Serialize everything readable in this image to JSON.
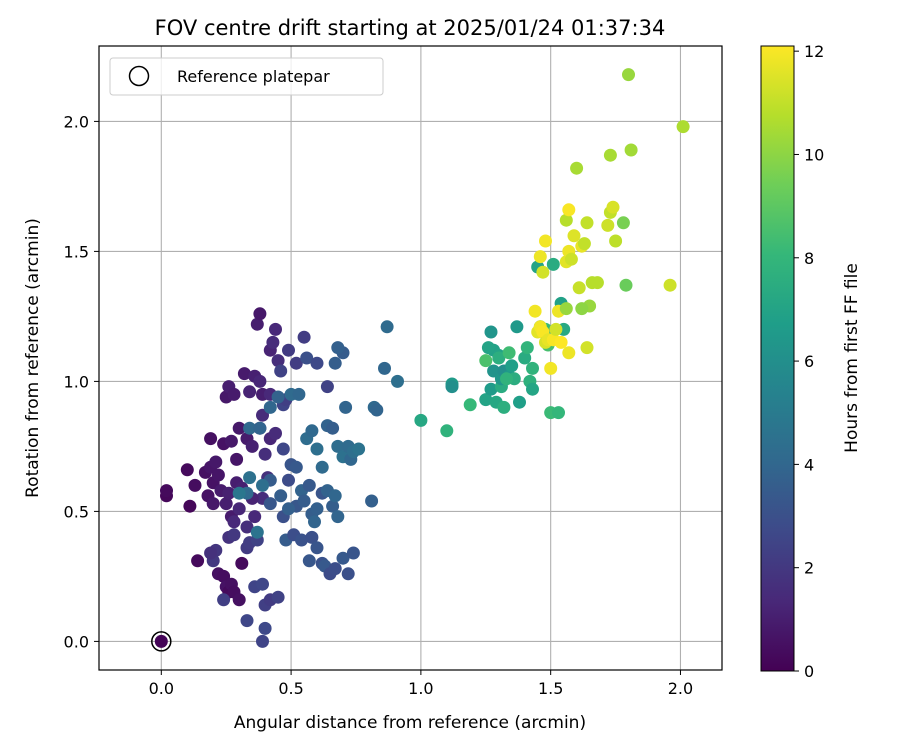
{
  "chart_data": {
    "type": "scatter",
    "title": "FOV centre drift starting at 2025/01/24 01:37:34",
    "xlabel": "Angular distance from reference (arcmin)",
    "ylabel": "Rotation from reference (arcmin)",
    "xlim": [
      -0.24,
      2.16
    ],
    "ylim": [
      -0.11,
      2.29
    ],
    "xticks": [
      0.0,
      0.5,
      1.0,
      1.5,
      2.0
    ],
    "xtick_labels": [
      "0.0",
      "0.5",
      "1.0",
      "1.5",
      "2.0"
    ],
    "yticks": [
      0.0,
      0.5,
      1.0,
      1.5,
      2.0
    ],
    "ytick_labels": [
      "0.0",
      "0.5",
      "1.0",
      "1.5",
      "2.0"
    ],
    "grid": true,
    "legend": {
      "position": "top-left",
      "entries": [
        "Reference platepar"
      ]
    },
    "reference_point": {
      "x": 0.0,
      "y": 0.0,
      "label": "Reference platepar"
    },
    "colorbar": {
      "label": "Hours from first FF file",
      "colormap": "viridis",
      "range": [
        0,
        12.1
      ],
      "ticks": [
        0,
        2,
        4,
        6,
        8,
        10,
        12
      ],
      "tick_labels": [
        "0",
        "2",
        "4",
        "6",
        "8",
        "10",
        "12"
      ]
    },
    "colors": {
      "viridis": [
        "#440154",
        "#482878",
        "#3e4989",
        "#31688e",
        "#26828e",
        "#1f9e89",
        "#35b779",
        "#6ece58",
        "#b5de2b",
        "#fde725"
      ],
      "grid": "#b0b0b0",
      "axes": "#000000"
    },
    "points": [
      [
        0.0,
        0.0,
        0.1
      ],
      [
        0.02,
        0.56,
        0.2
      ],
      [
        0.02,
        0.58,
        0.3
      ],
      [
        0.1,
        0.66,
        0.3
      ],
      [
        0.11,
        0.52,
        0.2
      ],
      [
        0.13,
        0.6,
        0.4
      ],
      [
        0.14,
        0.31,
        0.3
      ],
      [
        0.17,
        0.65,
        0.5
      ],
      [
        0.18,
        0.56,
        0.6
      ],
      [
        0.19,
        0.67,
        0.7
      ],
      [
        0.19,
        0.78,
        0.5
      ],
      [
        0.2,
        0.61,
        0.6
      ],
      [
        0.21,
        0.69,
        0.8
      ],
      [
        0.2,
        0.53,
        0.8
      ],
      [
        0.22,
        0.64,
        0.7
      ],
      [
        0.23,
        0.58,
        0.9
      ],
      [
        0.22,
        0.26,
        0.5
      ],
      [
        0.24,
        0.25,
        0.4
      ],
      [
        0.25,
        0.21,
        0.6
      ],
      [
        0.26,
        0.19,
        0.3
      ],
      [
        0.27,
        0.22,
        0.5
      ],
      [
        0.28,
        0.19,
        0.4
      ],
      [
        0.3,
        0.16,
        0.5
      ],
      [
        0.31,
        0.3,
        0.3
      ],
      [
        0.24,
        0.76,
        0.6
      ],
      [
        0.27,
        0.77,
        0.8
      ],
      [
        0.29,
        0.7,
        0.7
      ],
      [
        0.3,
        0.82,
        0.8
      ],
      [
        0.25,
        0.53,
        1.0
      ],
      [
        0.26,
        0.57,
        1.1
      ],
      [
        0.27,
        0.48,
        0.9
      ],
      [
        0.29,
        0.61,
        1.0
      ],
      [
        0.31,
        0.59,
        1.1
      ],
      [
        0.33,
        0.78,
        0.9
      ],
      [
        0.35,
        0.75,
        1.1
      ],
      [
        0.25,
        0.94,
        0.8
      ],
      [
        0.26,
        0.98,
        1.0
      ],
      [
        0.28,
        0.95,
        0.9
      ],
      [
        0.32,
        1.03,
        0.9
      ],
      [
        0.34,
        0.96,
        1.2
      ],
      [
        0.36,
        1.02,
        1.1
      ],
      [
        0.38,
        1.0,
        1.3
      ],
      [
        0.39,
        0.95,
        1.0
      ],
      [
        0.37,
        1.22,
        1.0
      ],
      [
        0.38,
        1.26,
        0.8
      ],
      [
        0.42,
        1.12,
        1.2
      ],
      [
        0.44,
        1.2,
        1.4
      ],
      [
        0.43,
        1.15,
        1.5
      ],
      [
        0.45,
        1.08,
        1.6
      ],
      [
        0.42,
        0.95,
        1.4
      ],
      [
        0.39,
        0.87,
        1.5
      ],
      [
        0.38,
        0.82,
        1.4
      ],
      [
        0.4,
        0.72,
        1.6
      ],
      [
        0.42,
        0.78,
        1.3
      ],
      [
        0.44,
        0.8,
        1.5
      ],
      [
        0.41,
        0.63,
        1.7
      ],
      [
        0.39,
        0.55,
        1.6
      ],
      [
        0.35,
        0.55,
        1.2
      ],
      [
        0.36,
        0.48,
        1.4
      ],
      [
        0.33,
        0.44,
        1.6
      ],
      [
        0.3,
        0.51,
        1.3
      ],
      [
        0.28,
        0.46,
        1.4
      ],
      [
        0.26,
        0.4,
        1.8
      ],
      [
        0.21,
        0.35,
        1.9
      ],
      [
        0.2,
        0.31,
        2.0
      ],
      [
        0.19,
        0.34,
        1.7
      ],
      [
        0.24,
        0.16,
        2.3
      ],
      [
        0.28,
        0.41,
        2.0
      ],
      [
        0.33,
        0.36,
        2.1
      ],
      [
        0.34,
        0.38,
        2.2
      ],
      [
        0.37,
        0.39,
        2.4
      ],
      [
        0.36,
        0.21,
        2.5
      ],
      [
        0.39,
        0.22,
        2.6
      ],
      [
        0.4,
        0.14,
        2.3
      ],
      [
        0.42,
        0.16,
        2.1
      ],
      [
        0.45,
        0.17,
        2.4
      ],
      [
        0.33,
        0.08,
        2.6
      ],
      [
        0.4,
        0.05,
        2.7
      ],
      [
        0.39,
        0.0,
        2.5
      ],
      [
        0.47,
        0.91,
        2.5
      ],
      [
        0.48,
        0.93,
        2.3
      ],
      [
        0.46,
        1.04,
        2.4
      ],
      [
        0.49,
        1.12,
        2.1
      ],
      [
        0.52,
        1.07,
        2.2
      ],
      [
        0.55,
        1.17,
        2.2
      ],
      [
        0.56,
        1.09,
        3.0
      ],
      [
        0.6,
        1.07,
        2.7
      ],
      [
        0.64,
        0.98,
        2.4
      ],
      [
        0.47,
        0.74,
        2.6
      ],
      [
        0.49,
        0.62,
        2.8
      ],
      [
        0.5,
        0.68,
        3.2
      ],
      [
        0.52,
        0.67,
        3.4
      ],
      [
        0.47,
        0.48,
        3.0
      ],
      [
        0.52,
        0.52,
        3.3
      ],
      [
        0.48,
        0.39,
        3.5
      ],
      [
        0.51,
        0.41,
        2.9
      ],
      [
        0.54,
        0.39,
        3.1
      ],
      [
        0.57,
        0.31,
        3.3
      ],
      [
        0.58,
        0.4,
        3.0
      ],
      [
        0.6,
        0.36,
        3.2
      ],
      [
        0.62,
        0.3,
        3.1
      ],
      [
        0.63,
        0.29,
        3.4
      ],
      [
        0.65,
        0.26,
        2.8
      ],
      [
        0.67,
        0.28,
        2.9
      ],
      [
        0.7,
        0.32,
        3.4
      ],
      [
        0.72,
        0.26,
        3.0
      ],
      [
        0.74,
        0.34,
        3.2
      ],
      [
        0.42,
        0.62,
        3.5
      ],
      [
        0.42,
        0.53,
        3.3
      ],
      [
        0.46,
        0.56,
        3.6
      ],
      [
        0.49,
        0.51,
        3.7
      ],
      [
        0.54,
        0.58,
        3.8
      ],
      [
        0.55,
        0.54,
        3.5
      ],
      [
        0.57,
        0.6,
        3.4
      ],
      [
        0.58,
        0.49,
        3.6
      ],
      [
        0.59,
        0.46,
        3.9
      ],
      [
        0.6,
        0.51,
        3.7
      ],
      [
        0.62,
        0.57,
        3.2
      ],
      [
        0.64,
        0.58,
        3.8
      ],
      [
        0.66,
        0.52,
        3.6
      ],
      [
        0.68,
        0.48,
        3.9
      ],
      [
        0.67,
        0.56,
        4.0
      ],
      [
        0.34,
        0.82,
        4.1
      ],
      [
        0.38,
        0.82,
        3.9
      ],
      [
        0.42,
        0.9,
        4.0
      ],
      [
        0.45,
        0.94,
        3.8
      ],
      [
        0.5,
        0.95,
        4.2
      ],
      [
        0.53,
        0.95,
        4.0
      ],
      [
        0.56,
        0.78,
        4.3
      ],
      [
        0.58,
        0.81,
        4.1
      ],
      [
        0.6,
        0.74,
        4.4
      ],
      [
        0.62,
        0.67,
        4.2
      ],
      [
        0.64,
        0.83,
        3.8
      ],
      [
        0.66,
        0.82,
        3.6
      ],
      [
        0.68,
        0.75,
        4.3
      ],
      [
        0.7,
        0.71,
        4.5
      ],
      [
        0.72,
        0.75,
        4.2
      ],
      [
        0.73,
        0.7,
        4.0
      ],
      [
        0.74,
        0.73,
        4.4
      ],
      [
        0.76,
        0.74,
        4.6
      ],
      [
        0.71,
        0.9,
        3.9
      ],
      [
        0.67,
        1.07,
        3.6
      ],
      [
        0.7,
        1.11,
        3.5
      ],
      [
        0.68,
        1.13,
        3.7
      ],
      [
        0.81,
        0.54,
        3.7
      ],
      [
        0.82,
        0.9,
        4.1
      ],
      [
        0.83,
        0.89,
        3.9
      ],
      [
        0.86,
        1.05,
        4.0
      ],
      [
        0.87,
        1.21,
        4.2
      ],
      [
        0.91,
        1.0,
        4.4
      ],
      [
        0.39,
        0.6,
        4.4
      ],
      [
        0.37,
        0.42,
        4.6
      ],
      [
        0.33,
        0.57,
        4.2
      ],
      [
        0.34,
        0.63,
        4.5
      ],
      [
        0.3,
        0.57,
        4.8
      ],
      [
        1.0,
        0.85,
        7.2
      ],
      [
        1.1,
        0.81,
        7.8
      ],
      [
        1.12,
        0.99,
        6.6
      ],
      [
        1.12,
        0.98,
        6.0
      ],
      [
        1.19,
        0.91,
        8.1
      ],
      [
        1.25,
        0.93,
        7.0
      ],
      [
        1.27,
        0.97,
        6.6
      ],
      [
        1.28,
        1.04,
        6.2
      ],
      [
        1.29,
        0.92,
        7.2
      ],
      [
        1.31,
        0.98,
        7.4
      ],
      [
        1.32,
        0.9,
        7.6
      ],
      [
        1.27,
        1.19,
        6.3
      ],
      [
        1.28,
        1.12,
        6.9
      ],
      [
        1.3,
        1.1,
        7.0
      ],
      [
        1.31,
        1.01,
        6.4
      ],
      [
        1.32,
        1.04,
        6.0
      ],
      [
        1.34,
        1.02,
        6.5
      ],
      [
        1.35,
        1.06,
        6.8
      ],
      [
        1.36,
        1.01,
        7.5
      ],
      [
        1.37,
        1.21,
        6.5
      ],
      [
        1.38,
        0.92,
        6.8
      ],
      [
        1.4,
        1.09,
        7.4
      ],
      [
        1.41,
        1.13,
        7.9
      ],
      [
        1.42,
        1.0,
        7.7
      ],
      [
        1.43,
        1.05,
        7.8
      ],
      [
        1.43,
        0.97,
        7.1
      ],
      [
        1.45,
        1.44,
        7.0
      ],
      [
        1.46,
        1.21,
        7.3
      ],
      [
        1.48,
        1.2,
        8.1
      ],
      [
        1.49,
        1.14,
        8.5
      ],
      [
        1.5,
        0.88,
        8.2
      ],
      [
        1.51,
        1.45,
        7.4
      ],
      [
        1.53,
        0.88,
        8.0
      ],
      [
        1.54,
        1.3,
        6.9
      ],
      [
        1.55,
        1.2,
        7.3
      ],
      [
        1.26,
        1.13,
        7.0
      ],
      [
        1.25,
        1.08,
        8.6
      ],
      [
        1.3,
        1.09,
        7.6
      ],
      [
        1.33,
        1.01,
        7.8
      ],
      [
        1.34,
        1.11,
        8.3
      ],
      [
        1.45,
        1.19,
        11.6
      ],
      [
        1.46,
        1.21,
        11.9
      ],
      [
        1.47,
        1.19,
        12.0
      ],
      [
        1.48,
        1.15,
        11.4
      ],
      [
        1.49,
        1.16,
        11.7
      ],
      [
        1.5,
        1.05,
        11.9
      ],
      [
        1.51,
        1.16,
        12.0
      ],
      [
        1.52,
        1.2,
        11.3
      ],
      [
        1.53,
        1.27,
        11.8
      ],
      [
        1.54,
        1.15,
        12.1
      ],
      [
        1.46,
        1.48,
        11.8
      ],
      [
        1.47,
        1.42,
        11.3
      ],
      [
        1.48,
        1.54,
        11.9
      ],
      [
        1.56,
        1.46,
        11.6
      ],
      [
        1.57,
        1.5,
        11.8
      ],
      [
        1.58,
        1.47,
        11.2
      ],
      [
        1.56,
        1.62,
        10.8
      ],
      [
        1.57,
        1.66,
        12.0
      ],
      [
        1.59,
        1.56,
        11.5
      ],
      [
        1.6,
        1.82,
        10.5
      ],
      [
        1.61,
        1.36,
        11.1
      ],
      [
        1.62,
        1.52,
        11.7
      ],
      [
        1.63,
        1.53,
        11.0
      ],
      [
        1.64,
        1.61,
        11.0
      ],
      [
        1.64,
        1.13,
        11.3
      ],
      [
        1.65,
        1.29,
        10.2
      ],
      [
        1.66,
        1.38,
        10.8
      ],
      [
        1.68,
        1.38,
        10.8
      ],
      [
        1.72,
        1.6,
        11.2
      ],
      [
        1.73,
        1.87,
        10.5
      ],
      [
        1.73,
        1.65,
        11.0
      ],
      [
        1.74,
        1.67,
        11.4
      ],
      [
        1.75,
        1.54,
        10.9
      ],
      [
        1.78,
        1.61,
        9.6
      ],
      [
        1.79,
        1.37,
        9.3
      ],
      [
        1.8,
        2.18,
        10.2
      ],
      [
        1.81,
        1.89,
        10.4
      ],
      [
        1.96,
        1.37,
        11.2
      ],
      [
        2.01,
        1.98,
        10.6
      ],
      [
        1.57,
        1.11,
        11.8
      ],
      [
        1.62,
        1.28,
        10.0
      ],
      [
        1.56,
        1.28,
        10.2
      ],
      [
        1.44,
        1.27,
        11.9
      ]
    ]
  }
}
